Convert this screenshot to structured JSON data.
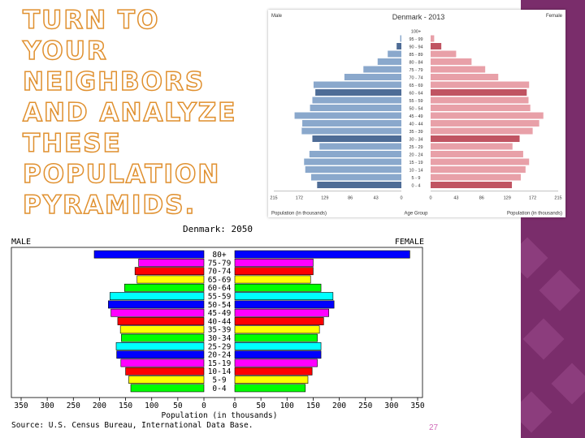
{
  "slide": {
    "title": "TURN TO YOUR NEIGHBORS AND ANALYZE THESE POPULATION PYRAMIDS.",
    "page_number": "27",
    "accent_color": "#e0902f",
    "strip_color": "#7a2d6b"
  },
  "chart_data": [
    {
      "type": "bar",
      "orientation": "horizontal-pyramid",
      "title": "Denmark - 2013",
      "left_label": "Male",
      "right_label": "Female",
      "xlabel_left": "Population (in thousands)",
      "xlabel_center": "Age Group",
      "xlabel_right": "Population (in thousands)",
      "xlim": [
        0,
        215
      ],
      "x_ticks": [
        "215",
        "172",
        "129",
        "86",
        "43",
        "0"
      ],
      "x_ticks_right": [
        "0",
        "43",
        "86",
        "129",
        "172",
        "215"
      ],
      "categories": [
        "100+",
        "95 - 99",
        "90 - 94",
        "85 - 89",
        "80 - 84",
        "75 - 79",
        "70 - 74",
        "65 - 69",
        "60 - 64",
        "55 - 59",
        "50 - 54",
        "45 - 49",
        "40 - 44",
        "35 - 39",
        "30 - 34",
        "25 - 29",
        "20 - 24",
        "15 - 19",
        "10 - 14",
        "5 - 9",
        "0 - 4"
      ],
      "series": [
        {
          "name": "Male",
          "color": "#8aa8cc",
          "values": [
            0,
            2,
            8,
            23,
            40,
            64,
            96,
            148,
            145,
            150,
            154,
            180,
            167,
            168,
            150,
            138,
            155,
            164,
            162,
            152,
            142
          ]
        },
        {
          "name": "Female",
          "color": "#e8a0a8",
          "values": [
            0,
            6,
            18,
            43,
            69,
            92,
            114,
            166,
            162,
            165,
            168,
            190,
            183,
            172,
            150,
            138,
            156,
            166,
            160,
            152,
            137
          ]
        }
      ],
      "shades": {
        "male_light": "#8aa8cc",
        "male_dark": "#4e6c96",
        "female_light": "#e8a0a8",
        "female_dark": "#c05462"
      }
    },
    {
      "type": "bar",
      "orientation": "horizontal-pyramid",
      "title": "Denmark: 2050",
      "left_label": "MALE",
      "right_label": "FEMALE",
      "xlabel": "Population (in thousands)",
      "source": "Source: U.S. Census Bureau, International Data Base.",
      "xlim": [
        0,
        350
      ],
      "x_ticks_left": [
        "350",
        "300",
        "250",
        "200",
        "150",
        "100",
        "50",
        "0"
      ],
      "x_ticks_right": [
        "0",
        "50",
        "100",
        "150",
        "200",
        "250",
        "300",
        "350"
      ],
      "categories": [
        "80+",
        "75-79",
        "70-74",
        "65-69",
        "60-64",
        "55-59",
        "50-54",
        "45-49",
        "40-44",
        "35-39",
        "30-34",
        "25-29",
        "20-24",
        "15-19",
        "10-14",
        "5-9",
        "0-4"
      ],
      "series": [
        {
          "name": "Male",
          "values": [
            210,
            125,
            132,
            128,
            152,
            180,
            183,
            178,
            165,
            160,
            158,
            168,
            167,
            159,
            150,
            144,
            140
          ]
        },
        {
          "name": "Female",
          "values": [
            335,
            150,
            150,
            145,
            165,
            188,
            190,
            180,
            170,
            162,
            158,
            165,
            165,
            158,
            148,
            140,
            135
          ]
        }
      ],
      "band_colors": [
        "#0000ff",
        "#ff00ff",
        "#ff0000",
        "#ffff00",
        "#00ff00",
        "#00ffff",
        "#0000ff",
        "#ff00ff",
        "#ff0000",
        "#ffff00",
        "#00ff00",
        "#00ffff",
        "#0000ff",
        "#ff00ff",
        "#ff0000",
        "#ffff00",
        "#00ff00"
      ]
    }
  ]
}
